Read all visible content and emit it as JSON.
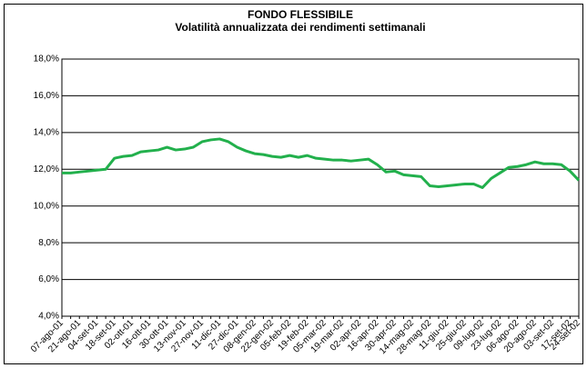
{
  "chart_data": {
    "type": "line",
    "title": "FONDO FLESSIBILE",
    "subtitle": "Volatilità annualizzata dei rendimenti settimanali",
    "categories": [
      "07-ago-01",
      null,
      "21-ago-01",
      null,
      "04-set-01",
      null,
      "18-set-01",
      null,
      "02-ott-01",
      null,
      "16-ott-01",
      null,
      "30-ott-01",
      null,
      "13-nov-01",
      null,
      "27-nov-01",
      null,
      "11-dic-01",
      null,
      "27-dic-01",
      null,
      "08-gen-02",
      null,
      "22-gen-02",
      null,
      "05-feb-02",
      null,
      "19-feb-02",
      null,
      "05-mar-02",
      null,
      "19-mar-02",
      null,
      "02-apr-02",
      null,
      "16-apr-02",
      null,
      "30-apr-02",
      null,
      "14-mag-02",
      null,
      "28-mag-02",
      null,
      "11-giu-02",
      null,
      "25-giu-02",
      null,
      "09-lug-02",
      null,
      "23-lug-02",
      null,
      "06-ago-02",
      null,
      "20-ago-02",
      null,
      "03-set-02",
      null,
      "17-set-02",
      "24-set-02"
    ],
    "series": [
      {
        "color": "#22b04c",
        "values": [
          11.8,
          11.8,
          11.85,
          11.9,
          11.95,
          12.0,
          12.6,
          12.7,
          12.75,
          12.95,
          13.0,
          13.05,
          13.2,
          13.05,
          13.1,
          13.2,
          13.5,
          13.6,
          13.65,
          13.5,
          13.2,
          13.0,
          12.85,
          12.8,
          12.7,
          12.65,
          12.75,
          12.65,
          12.75,
          12.6,
          12.55,
          12.5,
          12.5,
          12.45,
          12.5,
          12.55,
          12.25,
          11.85,
          11.9,
          11.7,
          11.65,
          11.6,
          11.1,
          11.05,
          11.1,
          11.15,
          11.2,
          11.2,
          11.0,
          11.5,
          11.8,
          12.1,
          12.15,
          12.25,
          12.4,
          12.3,
          12.3,
          12.25,
          11.9,
          11.4
        ]
      }
    ],
    "ylim": [
      4,
      18
    ],
    "yticks": [
      {
        "value": 4,
        "label": "4,0%"
      },
      {
        "value": 6,
        "label": "6,0%"
      },
      {
        "value": 8,
        "label": "8,0%"
      },
      {
        "value": 10,
        "label": "10,0%"
      },
      {
        "value": 12,
        "label": "12,0%"
      },
      {
        "value": 14,
        "label": "14,0%"
      },
      {
        "value": 16,
        "label": "16,0%"
      },
      {
        "value": 18,
        "label": "18,0%"
      }
    ],
    "grid": true
  }
}
